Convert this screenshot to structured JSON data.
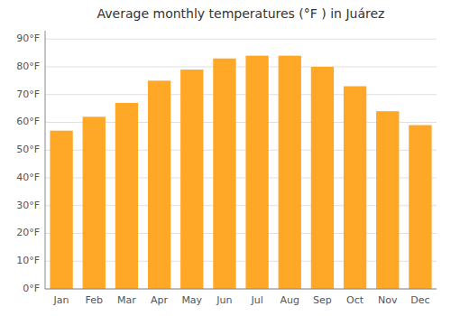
{
  "chart_data": {
    "type": "bar",
    "title": "Average monthly temperatures (°F ) in Juárez",
    "categories": [
      "Jan",
      "Feb",
      "Mar",
      "Apr",
      "May",
      "Jun",
      "Jul",
      "Aug",
      "Sep",
      "Oct",
      "Nov",
      "Dec"
    ],
    "values": [
      57,
      62,
      67,
      75,
      79,
      83,
      84,
      84,
      80,
      73,
      64,
      59
    ],
    "color": "#FFA726",
    "ylim": [
      0,
      93
    ],
    "yticks": [
      {
        "value": 0,
        "label": "0°F"
      },
      {
        "value": 10,
        "label": "10°F"
      },
      {
        "value": 20,
        "label": "20°F"
      },
      {
        "value": 30,
        "label": "30°F"
      },
      {
        "value": 40,
        "label": "40°F"
      },
      {
        "value": 50,
        "label": "50°F"
      },
      {
        "value": 60,
        "label": "60°F"
      },
      {
        "value": 70,
        "label": "70°F"
      },
      {
        "value": 80,
        "label": "80°F"
      },
      {
        "value": 90,
        "label": "90°F"
      }
    ],
    "grid": true
  }
}
